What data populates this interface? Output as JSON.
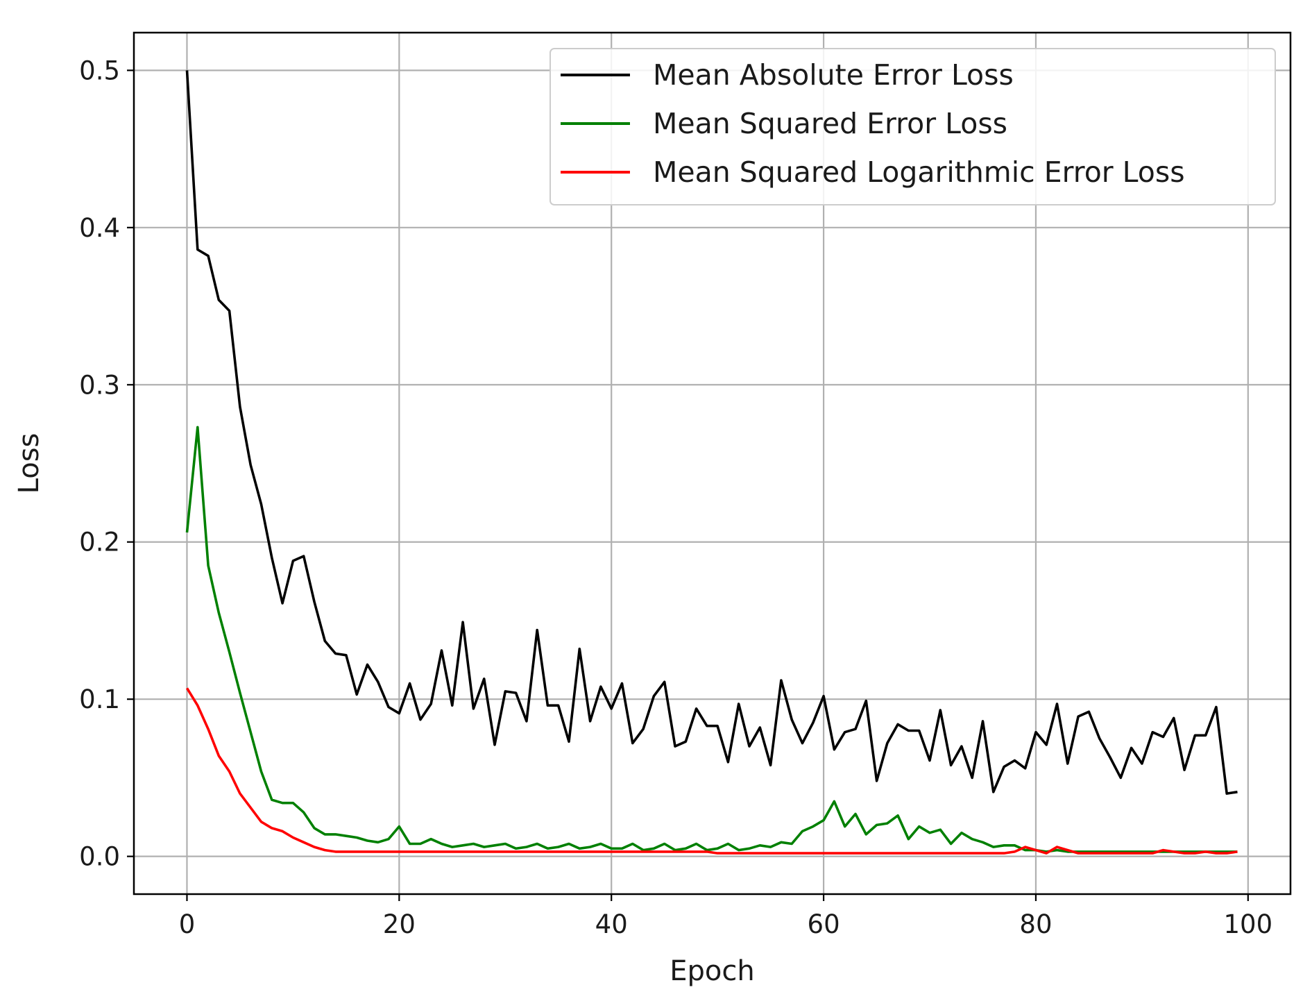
{
  "chart_data": {
    "type": "line",
    "title": "",
    "xlabel": "Epoch",
    "ylabel": "Loss",
    "xlim": [
      -5,
      104
    ],
    "ylim": [
      -0.024,
      0.524
    ],
    "xticks": [
      0,
      20,
      40,
      60,
      80,
      100
    ],
    "xtick_labels": [
      "0",
      "20",
      "40",
      "60",
      "80",
      "100"
    ],
    "yticks": [
      0.0,
      0.1,
      0.2,
      0.3,
      0.4,
      0.5
    ],
    "ytick_labels": [
      "0.0",
      "0.1",
      "0.2",
      "0.3",
      "0.4",
      "0.5"
    ],
    "grid": true,
    "legend_position": "top-right",
    "x": [
      0,
      1,
      2,
      3,
      4,
      5,
      6,
      7,
      8,
      9,
      10,
      11,
      12,
      13,
      14,
      15,
      16,
      17,
      18,
      19,
      20,
      21,
      22,
      23,
      24,
      25,
      26,
      27,
      28,
      29,
      30,
      31,
      32,
      33,
      34,
      35,
      36,
      37,
      38,
      39,
      40,
      41,
      42,
      43,
      44,
      45,
      46,
      47,
      48,
      49,
      50,
      51,
      52,
      53,
      54,
      55,
      56,
      57,
      58,
      59,
      60,
      61,
      62,
      63,
      64,
      65,
      66,
      67,
      68,
      69,
      70,
      71,
      72,
      73,
      74,
      75,
      76,
      77,
      78,
      79,
      80,
      81,
      82,
      83,
      84,
      85,
      86,
      87,
      88,
      89,
      90,
      91,
      92,
      93,
      94,
      95,
      96,
      97,
      98,
      99
    ],
    "series": [
      {
        "name": "Mean Absolute Error Loss",
        "color": "#000000",
        "values": [
          0.5,
          0.386,
          0.382,
          0.354,
          0.347,
          0.286,
          0.249,
          0.224,
          0.19,
          0.161,
          0.188,
          0.191,
          0.162,
          0.137,
          0.129,
          0.128,
          0.103,
          0.122,
          0.111,
          0.095,
          0.091,
          0.11,
          0.087,
          0.097,
          0.131,
          0.096,
          0.149,
          0.094,
          0.113,
          0.071,
          0.105,
          0.104,
          0.086,
          0.144,
          0.096,
          0.096,
          0.073,
          0.132,
          0.086,
          0.108,
          0.094,
          0.11,
          0.072,
          0.081,
          0.102,
          0.111,
          0.07,
          0.073,
          0.094,
          0.083,
          0.083,
          0.06,
          0.097,
          0.07,
          0.082,
          0.058,
          0.112,
          0.087,
          0.072,
          0.085,
          0.102,
          0.068,
          0.079,
          0.081,
          0.099,
          0.048,
          0.072,
          0.084,
          0.08,
          0.08,
          0.061,
          0.093,
          0.058,
          0.07,
          0.05,
          0.086,
          0.041,
          0.057,
          0.061,
          0.056,
          0.079,
          0.071,
          0.097,
          0.059,
          0.089,
          0.092,
          0.075,
          0.063,
          0.05,
          0.069,
          0.059,
          0.079,
          0.076,
          0.088,
          0.055,
          0.077,
          0.077,
          0.095,
          0.04,
          0.041
        ]
      },
      {
        "name": "Mean Squared Error Loss",
        "color": "#008000",
        "values": [
          0.206,
          0.273,
          0.185,
          0.155,
          0.13,
          0.104,
          0.079,
          0.054,
          0.036,
          0.034,
          0.034,
          0.028,
          0.018,
          0.014,
          0.014,
          0.013,
          0.012,
          0.01,
          0.009,
          0.011,
          0.019,
          0.008,
          0.008,
          0.011,
          0.008,
          0.006,
          0.007,
          0.008,
          0.006,
          0.007,
          0.008,
          0.005,
          0.006,
          0.008,
          0.005,
          0.006,
          0.008,
          0.005,
          0.006,
          0.008,
          0.005,
          0.005,
          0.008,
          0.004,
          0.005,
          0.008,
          0.004,
          0.005,
          0.008,
          0.004,
          0.005,
          0.008,
          0.004,
          0.005,
          0.007,
          0.006,
          0.009,
          0.008,
          0.016,
          0.019,
          0.023,
          0.035,
          0.019,
          0.027,
          0.014,
          0.02,
          0.021,
          0.026,
          0.011,
          0.019,
          0.015,
          0.017,
          0.008,
          0.015,
          0.011,
          0.009,
          0.006,
          0.007,
          0.007,
          0.004,
          0.004,
          0.003,
          0.004,
          0.003,
          0.003,
          0.003,
          0.003,
          0.003,
          0.003,
          0.003,
          0.003,
          0.003,
          0.003,
          0.003,
          0.003,
          0.003,
          0.003,
          0.003,
          0.003,
          0.003
        ]
      },
      {
        "name": "Mean Squared Logarithmic Error Loss",
        "color": "#ff0000",
        "values": [
          0.107,
          0.096,
          0.081,
          0.064,
          0.054,
          0.04,
          0.031,
          0.022,
          0.018,
          0.016,
          0.012,
          0.009,
          0.006,
          0.004,
          0.003,
          0.003,
          0.003,
          0.003,
          0.003,
          0.003,
          0.003,
          0.003,
          0.003,
          0.003,
          0.003,
          0.003,
          0.003,
          0.003,
          0.003,
          0.003,
          0.003,
          0.003,
          0.003,
          0.003,
          0.003,
          0.003,
          0.003,
          0.003,
          0.003,
          0.003,
          0.003,
          0.003,
          0.003,
          0.003,
          0.003,
          0.003,
          0.003,
          0.003,
          0.003,
          0.003,
          0.002,
          0.002,
          0.002,
          0.002,
          0.002,
          0.002,
          0.002,
          0.002,
          0.002,
          0.002,
          0.002,
          0.002,
          0.002,
          0.002,
          0.002,
          0.002,
          0.002,
          0.002,
          0.002,
          0.002,
          0.002,
          0.002,
          0.002,
          0.002,
          0.002,
          0.002,
          0.002,
          0.002,
          0.003,
          0.006,
          0.004,
          0.002,
          0.006,
          0.004,
          0.002,
          0.002,
          0.002,
          0.002,
          0.002,
          0.002,
          0.002,
          0.002,
          0.004,
          0.003,
          0.002,
          0.002,
          0.003,
          0.002,
          0.002,
          0.003
        ]
      }
    ]
  }
}
